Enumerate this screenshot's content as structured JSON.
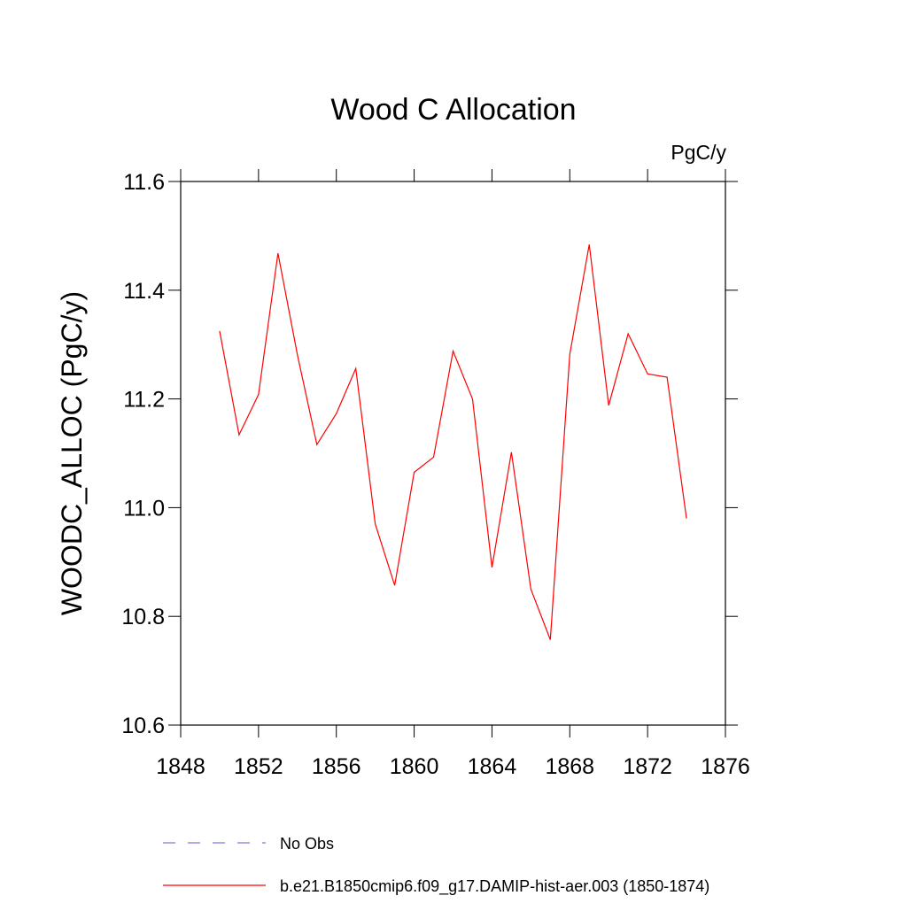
{
  "chart_data": {
    "type": "line",
    "title": "Wood C Allocation",
    "units": "PgC/y",
    "ylabel": "WOODC_ALLOC  (PgC/y)",
    "x": [
      1850,
      1851,
      1852,
      1853,
      1854,
      1855,
      1856,
      1857,
      1858,
      1859,
      1860,
      1861,
      1862,
      1863,
      1864,
      1865,
      1866,
      1867,
      1868,
      1869,
      1870,
      1871,
      1872,
      1873,
      1874
    ],
    "series": [
      {
        "name": "No Obs",
        "color": "#7b7bd6",
        "dash": true,
        "values": [
          null,
          null,
          null,
          null,
          null,
          null,
          null,
          null,
          null,
          null,
          null,
          null,
          null,
          null,
          null,
          null,
          null,
          null,
          null,
          null,
          null,
          null,
          null,
          null,
          null
        ]
      },
      {
        "name": "b.e21.B1850cmip6.f09_g17.DAMIP-hist-aer.003 (1850-1874)",
        "color": "#ff0000",
        "dash": false,
        "values": [
          11.325,
          11.134,
          11.208,
          11.468,
          11.281,
          11.116,
          11.173,
          11.256,
          10.97,
          10.857,
          11.065,
          11.093,
          11.288,
          11.2,
          10.89,
          11.102,
          10.85,
          10.757,
          11.282,
          11.484,
          11.188,
          11.32,
          11.246,
          11.24,
          10.98
        ]
      }
    ],
    "xlim": [
      1848,
      1876
    ],
    "xticks": [
      1848,
      1852,
      1856,
      1860,
      1864,
      1868,
      1872,
      1876
    ],
    "ylim": [
      10.6,
      11.6
    ],
    "yticks": [
      10.6,
      10.8,
      {
        "value": 11,
        "label": "11.0"
      },
      11.2,
      11.4,
      11.6
    ]
  }
}
